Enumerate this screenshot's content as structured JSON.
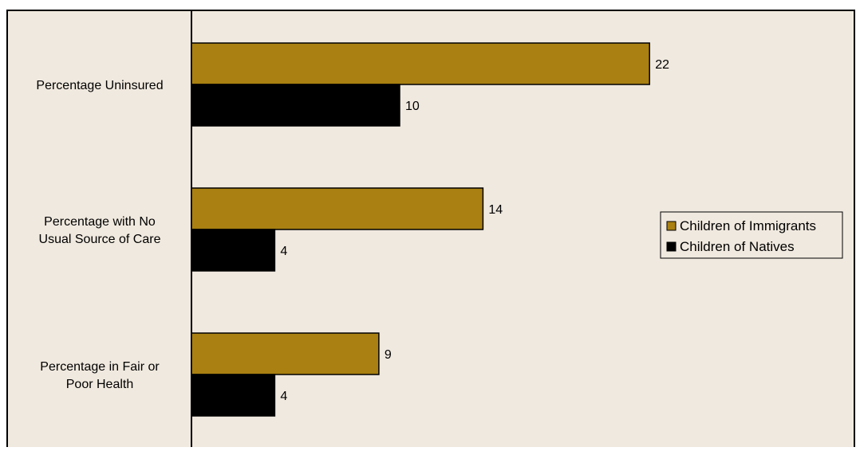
{
  "chart_data": {
    "type": "bar",
    "orientation": "horizontal",
    "categories": [
      [
        "Percentage Uninsured"
      ],
      [
        "Percentage with No",
        "Usual Source of Care"
      ],
      [
        "Percentage in Fair or",
        "Poor Health"
      ]
    ],
    "series": [
      {
        "name": "Children of Immigrants",
        "values": [
          22,
          14,
          9
        ],
        "color": "#a98011"
      },
      {
        "name": "Children of Natives",
        "values": [
          10,
          4,
          4
        ],
        "color": "#000000"
      }
    ],
    "data_labels": true,
    "legend_position": "right",
    "grid": false
  }
}
